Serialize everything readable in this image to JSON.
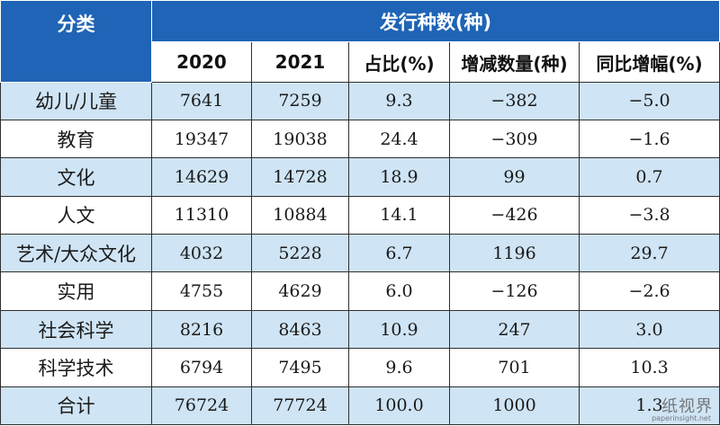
{
  "header": {
    "category_label": "分类",
    "group_label": "发行种数(种)",
    "columns": [
      "2020",
      "2021",
      "占比(%)",
      "增减数量(种)",
      "同比增幅(%)"
    ]
  },
  "rows": [
    {
      "category": "幼儿/儿童",
      "y2020": "7641",
      "y2021": "7259",
      "share": "9.3",
      "change": "−382",
      "growth": "−5.0"
    },
    {
      "category": "教育",
      "y2020": "19347",
      "y2021": "19038",
      "share": "24.4",
      "change": "−309",
      "growth": "−1.6"
    },
    {
      "category": "文化",
      "y2020": "14629",
      "y2021": "14728",
      "share": "18.9",
      "change": "99",
      "growth": "0.7"
    },
    {
      "category": "人文",
      "y2020": "11310",
      "y2021": "10884",
      "share": "14.1",
      "change": "−426",
      "growth": "−3.8"
    },
    {
      "category": "艺术/大众文化",
      "y2020": "4032",
      "y2021": "5228",
      "share": "6.7",
      "change": "1196",
      "growth": "29.7"
    },
    {
      "category": "实用",
      "y2020": "4755",
      "y2021": "4629",
      "share": "6.0",
      "change": "−126",
      "growth": "−2.6"
    },
    {
      "category": "社会科学",
      "y2020": "8216",
      "y2021": "8463",
      "share": "10.9",
      "change": "247",
      "growth": "3.0"
    },
    {
      "category": "科学技术",
      "y2020": "6794",
      "y2021": "7495",
      "share": "9.6",
      "change": "701",
      "growth": "10.3"
    },
    {
      "category": "合计",
      "y2020": "76724",
      "y2021": "77724",
      "share": "100.0",
      "change": "1000",
      "growth": "1.3"
    }
  ],
  "watermark": {
    "text": "纸视界",
    "url": "paperinsight.net"
  },
  "colors": {
    "header_bg": "#1f64b6",
    "shade_bg": "#cfe4f4",
    "border": "#2f2f2f"
  }
}
